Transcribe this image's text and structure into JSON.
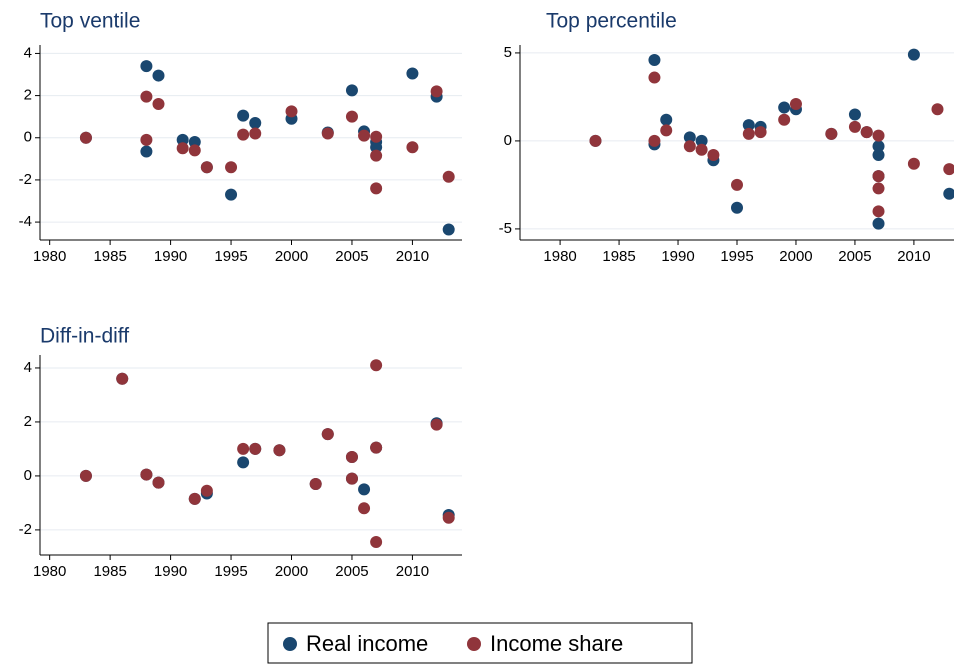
{
  "chart_data": [
    {
      "type": "scatter",
      "title": "Top ventile",
      "xlim": [
        1979.2,
        2014.1
      ],
      "ylim": [
        -4.85,
        4.4
      ],
      "xticks": [
        1980,
        1985,
        1990,
        1995,
        2000,
        2005,
        2010
      ],
      "yticks": [
        -4,
        -2,
        0,
        2,
        4
      ],
      "grid": true,
      "series": [
        {
          "name": "Real income",
          "color": "#1a476f",
          "x": [
            1983,
            1988,
            1988,
            1989,
            1991,
            1992,
            1993,
            1995,
            1996,
            1997,
            2000,
            2003,
            2005,
            2006,
            2007,
            2007,
            2010,
            2012,
            2013
          ],
          "values": [
            0,
            3.4,
            -0.65,
            2.95,
            -0.1,
            -0.2,
            -1.4,
            -2.7,
            1.05,
            0.7,
            0.9,
            0.25,
            2.25,
            0.3,
            -0.2,
            -0.45,
            3.05,
            1.95,
            -4.35
          ]
        },
        {
          "name": "Income share",
          "color": "#90353b",
          "x": [
            1983,
            1988,
            1988,
            1989,
            1991,
            1992,
            1993,
            1995,
            1996,
            1997,
            2000,
            2003,
            2005,
            2006,
            2007,
            2007,
            2007,
            2010,
            2012,
            2013
          ],
          "values": [
            0,
            1.95,
            -0.1,
            1.6,
            -0.5,
            -0.6,
            -1.4,
            -1.4,
            0.15,
            0.2,
            1.25,
            0.2,
            1.0,
            0.1,
            0.05,
            -0.85,
            -2.4,
            -0.45,
            2.2,
            -1.85
          ]
        }
      ]
    },
    {
      "type": "scatter",
      "title": "Top percentile",
      "xlim": [
        1976.6,
        2013.4
      ],
      "ylim": [
        -5.63,
        5.45
      ],
      "xticks": [
        1980,
        1985,
        1990,
        1995,
        2000,
        2005,
        2010
      ],
      "yticks": [
        -5,
        0,
        5
      ],
      "grid": true,
      "series": [
        {
          "name": "Real income",
          "color": "#1a476f",
          "x": [
            1983,
            1988,
            1988,
            1989,
            1991,
            1992,
            1993,
            1995,
            1996,
            1997,
            1999,
            2000,
            2003,
            2005,
            2006,
            2007,
            2007,
            2007,
            2007,
            2010,
            2013
          ],
          "values": [
            0,
            4.6,
            -0.2,
            1.2,
            0.2,
            0.0,
            -1.1,
            -3.8,
            0.9,
            0.8,
            1.9,
            1.8,
            0.4,
            1.5,
            0.5,
            -0.3,
            -0.8,
            -2.0,
            -4.7,
            4.9,
            -3.0
          ]
        },
        {
          "name": "Income share",
          "color": "#90353b",
          "x": [
            1983,
            1988,
            1988,
            1989,
            1991,
            1992,
            1993,
            1995,
            1996,
            1997,
            1999,
            2000,
            2003,
            2005,
            2006,
            2007,
            2007,
            2007,
            2007,
            2010,
            2012,
            2013
          ],
          "values": [
            0,
            3.6,
            0.0,
            0.6,
            -0.3,
            -0.5,
            -0.8,
            -2.5,
            0.4,
            0.5,
            1.2,
            2.1,
            0.4,
            0.8,
            0.5,
            0.3,
            -2.0,
            -2.7,
            -4.0,
            -1.3,
            1.8,
            -1.6
          ]
        }
      ]
    },
    {
      "type": "scatter",
      "title": "Diff-in-diff",
      "xlim": [
        1979.2,
        2014.1
      ],
      "ylim": [
        -2.93,
        4.48
      ],
      "xticks": [
        1980,
        1985,
        1990,
        1995,
        2000,
        2005,
        2010
      ],
      "yticks": [
        -2,
        0,
        2,
        4
      ],
      "grid": true,
      "series": [
        {
          "name": "Real income",
          "color": "#1a476f",
          "x": [
            1983,
            1986,
            1988,
            1989,
            1992,
            1993,
            1996,
            1997,
            1999,
            2002,
            2003,
            2005,
            2005,
            2006,
            2007,
            2012,
            2013
          ],
          "values": [
            0,
            3.6,
            0.05,
            -0.25,
            -0.85,
            -0.65,
            0.5,
            1.0,
            0.95,
            -0.3,
            1.55,
            0.7,
            -0.1,
            -0.5,
            1.05,
            1.95,
            -1.45
          ]
        },
        {
          "name": "Income share",
          "color": "#90353b",
          "x": [
            1983,
            1986,
            1988,
            1989,
            1992,
            1993,
            1996,
            1997,
            1999,
            2002,
            2003,
            2005,
            2005,
            2006,
            2007,
            2007,
            2007,
            2012,
            2013
          ],
          "values": [
            0,
            3.6,
            0.05,
            -0.25,
            -0.85,
            -0.55,
            1.0,
            1.0,
            0.95,
            -0.3,
            1.55,
            0.7,
            -0.1,
            -1.2,
            4.1,
            1.05,
            -2.45,
            1.9,
            -1.55
          ]
        }
      ]
    }
  ]
}
